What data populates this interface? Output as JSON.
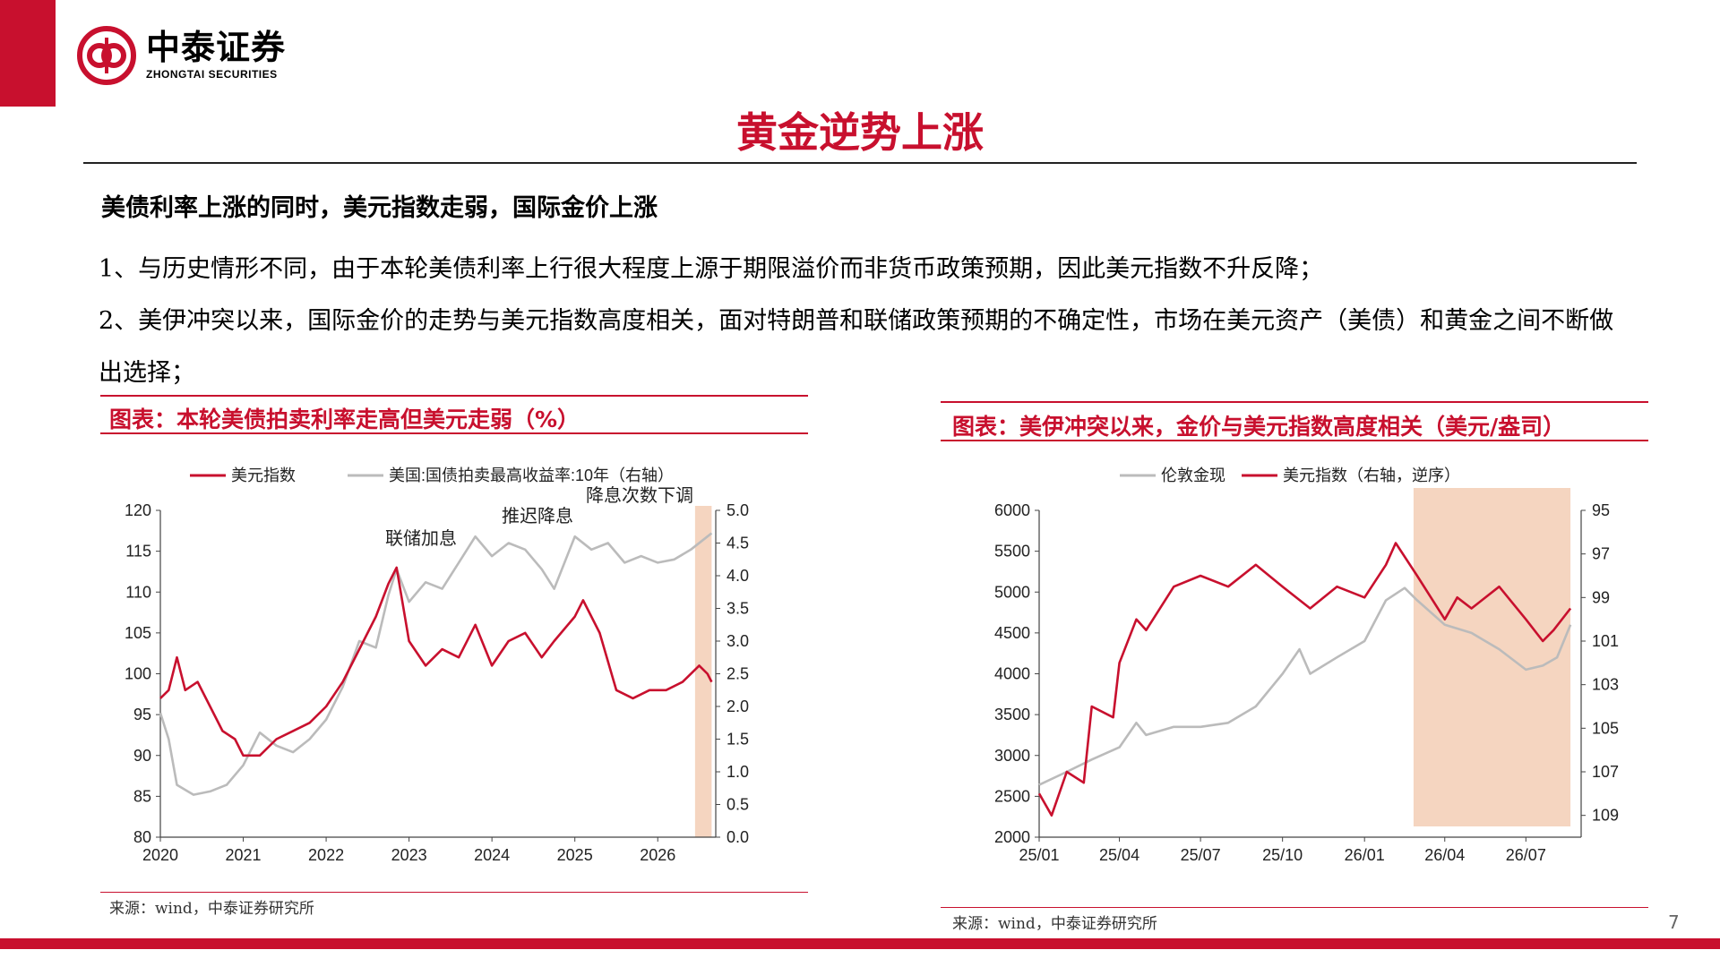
{
  "brand": {
    "name_cn": "中泰证券",
    "name_en": "ZHONGTAI SECURITIES",
    "color": "#c8102e"
  },
  "page": {
    "title": "黄金逆势上涨",
    "headline": "美债利率上涨的同时，美元指数走弱，国际金价上涨",
    "point1": "1、与历史情形不同，由于本轮美债利率上行很大程度上源于期限溢价而非货币政策预期，因此美元指数不升反降；",
    "point2": "2、美伊冲突以来，国际金价的走势与美元指数高度相关，面对特朗普和联储政策预期的不确定性，市场在美元资产（美债）和黄金之间不断做出选择；",
    "page_number": "7"
  },
  "left_figure": {
    "caption": "图表：本轮美债拍卖利率走高但美元走弱（%）",
    "source": "来源：wind，中泰证券研究所"
  },
  "right_figure": {
    "caption": "图表：美伊冲突以来，金价与美元指数高度相关（美元/盎司）",
    "source": "来源：wind，中泰证券研究所"
  },
  "chart_data": [
    {
      "type": "line",
      "series": [
        {
          "name": "美元指数",
          "axis": "left",
          "color": "#c8102e",
          "x": [
            2020.0,
            2020.1,
            2020.2,
            2020.3,
            2020.45,
            2020.6,
            2020.75,
            2020.9,
            2021.0,
            2021.2,
            2021.4,
            2021.6,
            2021.8,
            2022.0,
            2022.2,
            2022.4,
            2022.6,
            2022.75,
            2022.85,
            2023.0,
            2023.2,
            2023.4,
            2023.6,
            2023.8,
            2024.0,
            2024.2,
            2024.4,
            2024.6,
            2024.75,
            2025.0,
            2025.1,
            2025.3,
            2025.5,
            2025.7,
            2025.9,
            2026.1,
            2026.3,
            2026.5,
            2026.6,
            2026.65
          ],
          "y": [
            97,
            98,
            102,
            98,
            99,
            96,
            93,
            92,
            90,
            90,
            92,
            93,
            94,
            96,
            99,
            103,
            107,
            111,
            113,
            104,
            101,
            103,
            102,
            106,
            101,
            104,
            105,
            102,
            104,
            107,
            109,
            105,
            98,
            97,
            98,
            98,
            99,
            101,
            100,
            99
          ]
        },
        {
          "name": "美国:国债拍卖最高收益率:10年（右轴）",
          "axis": "right",
          "color": "#bbbbbb",
          "x": [
            2020.0,
            2020.1,
            2020.2,
            2020.4,
            2020.6,
            2020.8,
            2021.0,
            2021.2,
            2021.4,
            2021.6,
            2021.8,
            2022.0,
            2022.2,
            2022.4,
            2022.6,
            2022.75,
            2022.85,
            2023.0,
            2023.2,
            2023.4,
            2023.6,
            2023.8,
            2024.0,
            2024.2,
            2024.4,
            2024.6,
            2024.75,
            2025.0,
            2025.2,
            2025.4,
            2025.6,
            2025.8,
            2026.0,
            2026.2,
            2026.4,
            2026.6,
            2026.65
          ],
          "y": [
            1.9,
            1.5,
            0.8,
            0.65,
            0.7,
            0.8,
            1.1,
            1.6,
            1.4,
            1.3,
            1.5,
            1.8,
            2.3,
            3.0,
            2.9,
            3.7,
            4.1,
            3.6,
            3.9,
            3.8,
            4.2,
            4.6,
            4.3,
            4.5,
            4.4,
            4.1,
            3.8,
            4.6,
            4.4,
            4.5,
            4.2,
            4.3,
            4.2,
            4.25,
            4.4,
            4.6,
            4.65
          ]
        }
      ],
      "xlim": [
        2020,
        2026.7
      ],
      "xticks": [
        "2020",
        "2021",
        "2022",
        "2023",
        "2024",
        "2025",
        "2026"
      ],
      "ylim": [
        80,
        120
      ],
      "yticks": [
        "80",
        "85",
        "90",
        "95",
        "100",
        "105",
        "110",
        "115",
        "120"
      ],
      "y2lim": [
        0,
        5
      ],
      "y2ticks": [
        "0.0",
        "0.5",
        "1.0",
        "1.5",
        "2.0",
        "2.5",
        "3.0",
        "3.5",
        "4.0",
        "4.5",
        "5.0"
      ],
      "annotations": [
        "联储加息",
        "推迟降息",
        "降息次数下调"
      ],
      "shaded_region": {
        "x": [
          2026.45,
          2026.65
        ],
        "color": "#f5d5c0"
      },
      "legend": "top",
      "grid": false
    },
    {
      "type": "line",
      "series": [
        {
          "name": "伦敦金现",
          "axis": "left",
          "color": "#bbbbbb",
          "x": [
            "2025-01-01",
            "2025-02-01",
            "2025-03-01",
            "2025-04-01",
            "2025-04-20",
            "2025-05-01",
            "2025-06-01",
            "2025-07-01",
            "2025-08-01",
            "2025-09-01",
            "2025-10-01",
            "2025-10-20",
            "2025-11-01",
            "2025-12-01",
            "2026-01-01",
            "2026-01-25",
            "2026-02-15",
            "2026-03-01",
            "2026-04-01",
            "2026-05-01",
            "2026-06-01",
            "2026-07-01",
            "2026-07-20",
            "2026-08-05",
            "2026-08-20"
          ],
          "y": [
            2640,
            2800,
            2950,
            3100,
            3400,
            3250,
            3350,
            3350,
            3400,
            3600,
            4000,
            4300,
            4000,
            4200,
            4400,
            4900,
            5050,
            4900,
            4600,
            4500,
            4300,
            4050,
            4100,
            4200,
            4600
          ]
        },
        {
          "name": "美元指数（右轴，逆序）",
          "axis": "right",
          "color": "#c8102e",
          "x": [
            "2025-01-01",
            "2025-01-15",
            "2025-02-01",
            "2025-02-20",
            "2025-03-01",
            "2025-03-25",
            "2025-04-01",
            "2025-04-20",
            "2025-05-01",
            "2025-06-01",
            "2025-07-01",
            "2025-08-01",
            "2025-09-01",
            "2025-10-01",
            "2025-11-01",
            "2025-12-01",
            "2026-01-01",
            "2026-01-25",
            "2026-02-05",
            "2026-03-01",
            "2026-04-01",
            "2026-04-15",
            "2026-05-01",
            "2026-06-01",
            "2026-07-01",
            "2026-07-20",
            "2026-08-01",
            "2026-08-20"
          ],
          "y": [
            108,
            109,
            107,
            107.5,
            104,
            104.5,
            102,
            100,
            100.5,
            98.5,
            98,
            98.5,
            97.5,
            98.5,
            99.5,
            98.5,
            99,
            97.5,
            96.5,
            98,
            100,
            99,
            99.5,
            98.5,
            100,
            101,
            100.5,
            99.5
          ]
        }
      ],
      "xticks": [
        "25/01",
        "25/04",
        "25/07",
        "25/10",
        "26/01",
        "26/04",
        "26/07"
      ],
      "ylim": [
        2000,
        6000
      ],
      "yticks": [
        "2000",
        "2500",
        "3000",
        "3500",
        "4000",
        "4500",
        "5000",
        "5500",
        "6000"
      ],
      "y2lim": [
        95,
        110
      ],
      "y2_reversed": true,
      "y2ticks": [
        "95",
        "97",
        "99",
        "101",
        "103",
        "105",
        "107",
        "109"
      ],
      "shaded_region": {
        "x": [
          "2026-02-25",
          "2026-08-20"
        ],
        "color": "#f5d5c0"
      },
      "legend": "top",
      "grid": false
    }
  ]
}
